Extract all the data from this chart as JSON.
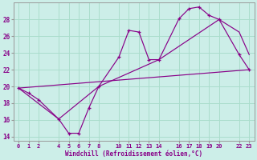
{
  "xlabel": "Windchill (Refroidissement éolien,°C)",
  "bg_color": "#cceee8",
  "grid_color": "#aaddcc",
  "line_color": "#880088",
  "xlim": [
    -0.5,
    23.5
  ],
  "ylim": [
    13.5,
    30.0
  ],
  "yticks": [
    14,
    16,
    18,
    20,
    22,
    24,
    26,
    28
  ],
  "xtick_positions": [
    0,
    1,
    2,
    4,
    5,
    6,
    7,
    8,
    10,
    11,
    12,
    13,
    14,
    16,
    17,
    18,
    19,
    20,
    22,
    23
  ],
  "xtick_labels": [
    "0",
    "1",
    "2",
    "4",
    "5",
    "6",
    "7",
    "8",
    "10",
    "11",
    "12",
    "13",
    "14",
    "16",
    "17",
    "18",
    "19",
    "20",
    "22",
    "23"
  ],
  "line1_x": [
    0,
    1,
    2,
    4,
    5,
    6,
    7,
    8,
    10,
    11,
    12,
    13,
    14,
    16,
    17,
    18,
    19,
    20,
    22,
    23
  ],
  "line1_y": [
    19.8,
    19.2,
    18.4,
    16.1,
    14.4,
    14.4,
    17.4,
    20.0,
    23.5,
    26.7,
    26.5,
    23.2,
    23.2,
    28.1,
    29.3,
    29.5,
    28.5,
    28.0,
    23.8,
    22.0
  ],
  "line2_x": [
    0,
    4,
    8,
    14,
    20,
    22,
    23
  ],
  "line2_y": [
    19.8,
    16.1,
    20.0,
    23.2,
    28.0,
    26.5,
    23.8
  ],
  "line3_x": [
    0,
    23
  ],
  "line3_y": [
    19.8,
    22.0
  ]
}
